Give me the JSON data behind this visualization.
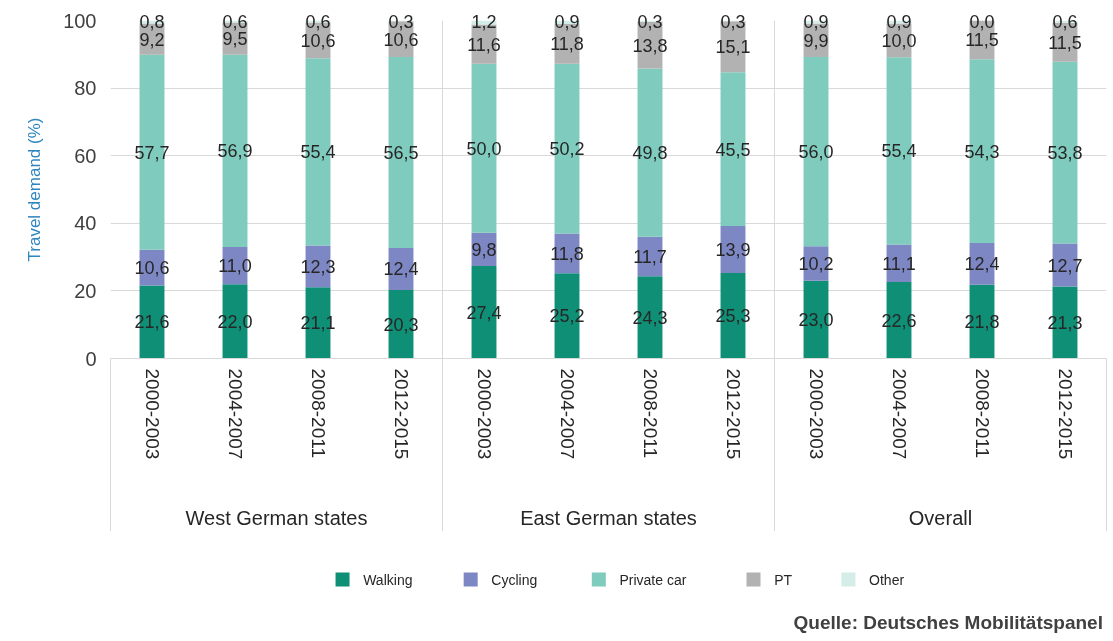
{
  "chart_data": {
    "type": "bar",
    "stacked": true,
    "ylabel": "Travel demand (%)",
    "categories": [
      "2000-2003",
      "2004-2007",
      "2008-2011",
      "2012-2015",
      "2000-2003",
      "2004-2007",
      "2008-2011",
      "2012-2015",
      "2000-2003",
      "2004-2007",
      "2008-2011",
      "2012-2015"
    ],
    "ylim": [
      0,
      100
    ],
    "yticks": [
      0,
      20,
      40,
      60,
      80,
      100
    ],
    "grid": "y",
    "legend": "bottom",
    "series": [
      {
        "name": "Walking",
        "color": "#0f8f76",
        "values": [
          21.6,
          22.0,
          21.1,
          20.3,
          27.4,
          25.2,
          24.3,
          25.3,
          23.0,
          22.6,
          21.8,
          21.3
        ],
        "value_labels": [
          "21,6",
          "22,0",
          "21,1",
          "20,3",
          "27,4",
          "25,2",
          "24,3",
          "25,3",
          "23,0",
          "22,6",
          "21,8",
          "21,3"
        ]
      },
      {
        "name": "Cycling",
        "color": "#7d87c3",
        "values": [
          10.6,
          11.0,
          12.3,
          12.4,
          9.8,
          11.8,
          11.7,
          13.9,
          10.2,
          11.1,
          12.4,
          12.7
        ],
        "value_labels": [
          "10,6",
          "11,0",
          "12,3",
          "12,4",
          "9,8",
          "11,8",
          "11,7",
          "13,9",
          "10,2",
          "11,1",
          "12,4",
          "12,7"
        ]
      },
      {
        "name": "Private car",
        "color": "#7fcbbd",
        "values": [
          57.7,
          56.9,
          55.4,
          56.5,
          50.0,
          50.2,
          49.8,
          45.5,
          56.0,
          55.4,
          54.3,
          53.8
        ],
        "value_labels": [
          "57,7",
          "56,9",
          "55,4",
          "56,5",
          "50,0",
          "50,2",
          "49,8",
          "45,5",
          "56,0",
          "55,4",
          "54,3",
          "53,8"
        ]
      },
      {
        "name": "PT",
        "color": "#b2b2b2",
        "values": [
          9.2,
          9.5,
          10.6,
          10.6,
          11.6,
          11.8,
          13.8,
          15.1,
          9.9,
          10.0,
          11.5,
          11.5
        ],
        "value_labels": [
          "9,2",
          "9,5",
          "10,6",
          "10,6",
          "11,6",
          "11,8",
          "13,8",
          "15,1",
          "9,9",
          "10,0",
          "11,5",
          "11,5"
        ]
      },
      {
        "name": "Other",
        "color": "#d4ede8",
        "values": [
          0.8,
          0.6,
          0.6,
          0.3,
          1.2,
          0.9,
          0.3,
          0.3,
          0.9,
          0.9,
          0.0,
          0.6
        ],
        "value_labels": [
          "0,8",
          "0,6",
          "0,6",
          "0,3",
          "1,2",
          "0,9",
          "0,3",
          "0,3",
          "0,9",
          "0,9",
          "0,0",
          "0,6"
        ]
      }
    ],
    "annotations": [
      "West German states",
      "East German states",
      "Overall",
      "Quelle: Deutsches Mobilitätspanel"
    ]
  }
}
